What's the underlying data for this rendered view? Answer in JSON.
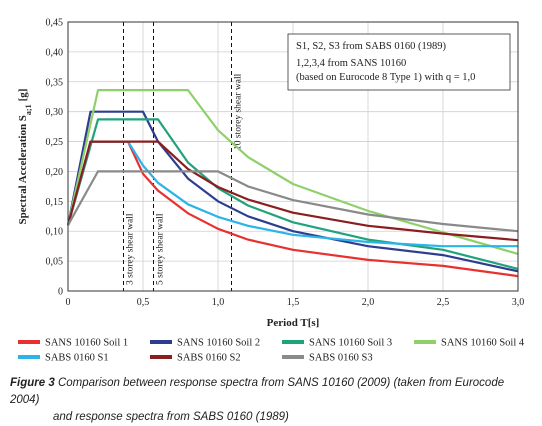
{
  "chart_data": {
    "type": "line",
    "xlabel": "Period T[s]",
    "ylabel": "Spectral Acceleration S",
    "ylabel_sub": "a;1",
    "ylabel_unit": "[g]",
    "xlim": [
      0,
      3.0
    ],
    "ylim": [
      0,
      0.45
    ],
    "xticks": [
      0,
      0.5,
      1.0,
      1.5,
      2.0,
      2.5,
      3.0
    ],
    "xtick_labels": [
      "0",
      "0,5",
      "1,0",
      "1,5",
      "2,0",
      "2,5",
      "3,0"
    ],
    "yticks": [
      0,
      0.05,
      0.1,
      0.15,
      0.2,
      0.25,
      0.3,
      0.35,
      0.4,
      0.45
    ],
    "ytick_labels": [
      "0",
      "0,05",
      "0,10",
      "0,15",
      "0,20",
      "0,25",
      "0,30",
      "0,35",
      "0,40",
      "0,45"
    ],
    "grid": true,
    "legend_placement": "bottom",
    "notes": [
      "S1, S2, S3 from SABS 0160 (1989)",
      "1,2,3,4 from SANS 10160",
      "(based on Eurocode 8 Type 1) with q = 1,0"
    ],
    "vlines": [
      {
        "x": 0.37,
        "label": "3 storey shear wall"
      },
      {
        "x": 0.57,
        "label": "5 storey shear wall"
      },
      {
        "x": 1.09,
        "label": "10 storey shear wall"
      }
    ],
    "series": [
      {
        "name": "SANS 10160 Soil 1",
        "color": "#e8312e",
        "width": 2.2,
        "points": [
          [
            0,
            0.11
          ],
          [
            0.15,
            0.25
          ],
          [
            0.4,
            0.25
          ],
          [
            0.5,
            0.196
          ],
          [
            0.6,
            0.168
          ],
          [
            0.8,
            0.13
          ],
          [
            1.0,
            0.104
          ],
          [
            1.2,
            0.086
          ],
          [
            1.5,
            0.069
          ],
          [
            2.0,
            0.052
          ],
          [
            2.5,
            0.042
          ],
          [
            3.0,
            0.025
          ]
        ]
      },
      {
        "name": "SANS 10160 Soil 2",
        "color": "#2e3d8f",
        "width": 2.2,
        "points": [
          [
            0,
            0.11
          ],
          [
            0.15,
            0.3
          ],
          [
            0.5,
            0.3
          ],
          [
            0.6,
            0.25
          ],
          [
            0.8,
            0.188
          ],
          [
            1.0,
            0.15
          ],
          [
            1.2,
            0.125
          ],
          [
            1.5,
            0.1
          ],
          [
            2.0,
            0.075
          ],
          [
            2.5,
            0.06
          ],
          [
            3.0,
            0.033
          ]
        ]
      },
      {
        "name": "SANS 10160 Soil 3",
        "color": "#1fa37a",
        "width": 2.2,
        "points": [
          [
            0,
            0.11
          ],
          [
            0.2,
            0.287
          ],
          [
            0.6,
            0.287
          ],
          [
            0.8,
            0.215
          ],
          [
            1.0,
            0.172
          ],
          [
            1.2,
            0.143
          ],
          [
            1.5,
            0.115
          ],
          [
            2.0,
            0.086
          ],
          [
            2.5,
            0.069
          ],
          [
            3.0,
            0.037
          ]
        ]
      },
      {
        "name": "SANS 10160 Soil 4",
        "color": "#8fd06a",
        "width": 2.2,
        "points": [
          [
            0,
            0.11
          ],
          [
            0.2,
            0.336
          ],
          [
            0.8,
            0.336
          ],
          [
            1.0,
            0.269
          ],
          [
            1.2,
            0.224
          ],
          [
            1.5,
            0.179
          ],
          [
            2.0,
            0.134
          ],
          [
            2.5,
            0.098
          ],
          [
            3.0,
            0.062
          ]
        ]
      },
      {
        "name": "SABS 0160 S1",
        "color": "#2ab4e8",
        "width": 2.2,
        "points": [
          [
            0,
            0.11
          ],
          [
            0.15,
            0.25
          ],
          [
            0.4,
            0.25
          ],
          [
            0.5,
            0.21
          ],
          [
            0.6,
            0.181
          ],
          [
            0.8,
            0.145
          ],
          [
            1.0,
            0.124
          ],
          [
            1.2,
            0.109
          ],
          [
            1.5,
            0.094
          ],
          [
            2.0,
            0.082
          ],
          [
            2.5,
            0.075
          ],
          [
            3.0,
            0.075
          ]
        ]
      },
      {
        "name": "SABS 0160 S2",
        "color": "#8b1e1e",
        "width": 2.2,
        "points": [
          [
            0,
            0.11
          ],
          [
            0.15,
            0.25
          ],
          [
            0.6,
            0.25
          ],
          [
            0.8,
            0.204
          ],
          [
            1.0,
            0.174
          ],
          [
            1.2,
            0.153
          ],
          [
            1.5,
            0.131
          ],
          [
            2.0,
            0.109
          ],
          [
            2.5,
            0.096
          ],
          [
            3.0,
            0.085
          ]
        ]
      },
      {
        "name": "SABS 0160 S3",
        "color": "#8a8a8a",
        "width": 2.2,
        "points": [
          [
            0,
            0.11
          ],
          [
            0.2,
            0.2
          ],
          [
            1.0,
            0.2
          ],
          [
            1.2,
            0.175
          ],
          [
            1.5,
            0.152
          ],
          [
            2.0,
            0.128
          ],
          [
            2.5,
            0.112
          ],
          [
            3.0,
            0.1
          ]
        ]
      }
    ]
  },
  "caption": {
    "label": "Figure 3",
    "line1": "Comparison between response spectra from SANS 10160 (2009) (taken from Eurocode 2004)",
    "line2": "and response spectra from SABS 0160 (1989)"
  }
}
